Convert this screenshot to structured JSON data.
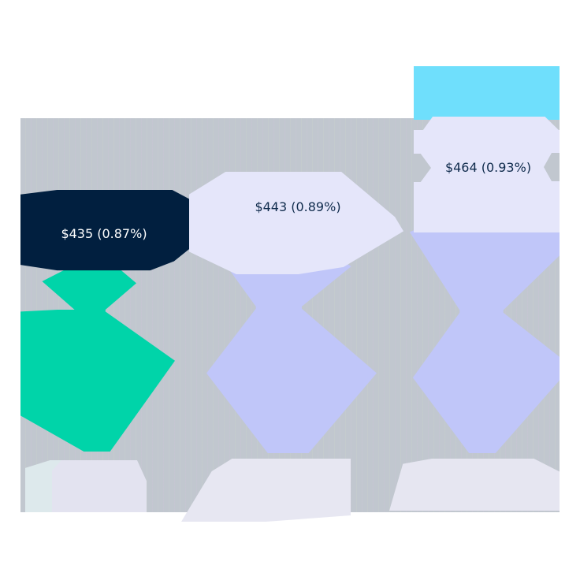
{
  "chart_data": {
    "type": "bar",
    "title": "",
    "subtitle": "",
    "categories": [
      "",
      "",
      ""
    ],
    "values": [
      435,
      443,
      464
    ],
    "percent_values": [
      0.87,
      0.89,
      0.93
    ],
    "data_labels": [
      "$435 (0.87%)",
      "$443 (0.89%)",
      "$464 (0.93%)"
    ],
    "xlabel": "",
    "ylabel": "",
    "ylim": [
      0,
      500
    ],
    "grid": false,
    "legend_position": "top-right",
    "note": "Image is heavily distorted; category labels, title, and legend text are illegible"
  },
  "colors": {
    "bar_highlight": "#00d4a9",
    "bar_default": "#c0c6f9",
    "label_highlight_bg": "#011f3f",
    "label_default_bg": "#e5e6fa",
    "legend_block": "#6fdffc",
    "panel_bg": "#c1c7cf",
    "label_text_dark": "#0f2b4c"
  },
  "bars": [
    {
      "label": "$435 (0.87%)"
    },
    {
      "label": "$443 (0.89%)"
    },
    {
      "label": "$464 (0.93%)"
    }
  ]
}
